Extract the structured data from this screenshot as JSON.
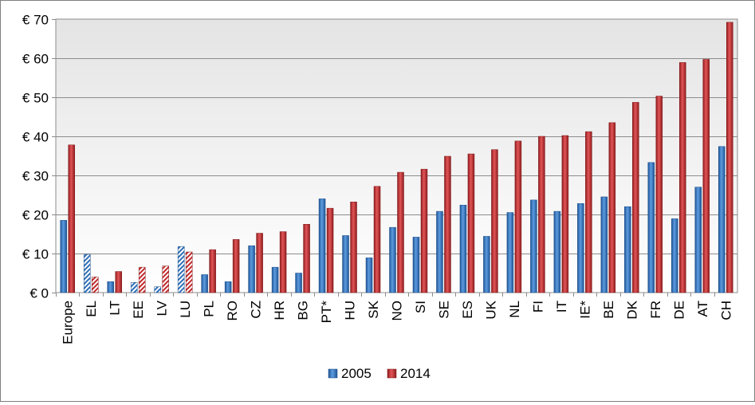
{
  "chart_data": {
    "type": "bar",
    "title": "",
    "xlabel": "",
    "ylabel": "",
    "ylim": [
      0,
      70
    ],
    "yticks": [
      "€ 0",
      "€ 10",
      "€ 20",
      "€ 30",
      "€ 40",
      "€ 50",
      "€ 60",
      "€ 70"
    ],
    "ytick_values": [
      0,
      10,
      20,
      30,
      40,
      50,
      60,
      70
    ],
    "grid": true,
    "legend_position": "bottom-center",
    "categories": [
      "Europe",
      "EL",
      "LT",
      "EE",
      "LV",
      "LU",
      "PL",
      "RO",
      "CZ",
      "HR",
      "BG",
      "PT*",
      "HU",
      "SK",
      "NO",
      "SI",
      "SE",
      "ES",
      "UK",
      "NL",
      "FI",
      "IT",
      "IE*",
      "BE",
      "DK",
      "FR",
      "DE",
      "AT",
      "CH"
    ],
    "hatched_categories": [
      "EL",
      "EE",
      "LV",
      "LU"
    ],
    "series": [
      {
        "name": "2005",
        "color": "#2e6fb7",
        "values": [
          18.5,
          9.8,
          2.8,
          2.6,
          1.5,
          11.8,
          4.6,
          2.8,
          12.0,
          6.5,
          5.0,
          24.0,
          14.6,
          8.9,
          16.7,
          14.2,
          20.8,
          22.4,
          14.4,
          20.5,
          23.7,
          20.8,
          22.8,
          24.5,
          22.0,
          33.3,
          18.9,
          27.0,
          37.4
        ]
      },
      {
        "name": "2014",
        "color": "#c0292b",
        "values": [
          37.8,
          4.0,
          5.4,
          6.5,
          6.8,
          10.4,
          11.0,
          13.6,
          15.2,
          15.6,
          17.5,
          21.6,
          23.2,
          27.2,
          30.8,
          31.6,
          34.9,
          35.5,
          36.6,
          38.8,
          40.0,
          40.2,
          41.2,
          43.5,
          48.7,
          50.3,
          58.9,
          59.7,
          69.2
        ]
      }
    ]
  }
}
